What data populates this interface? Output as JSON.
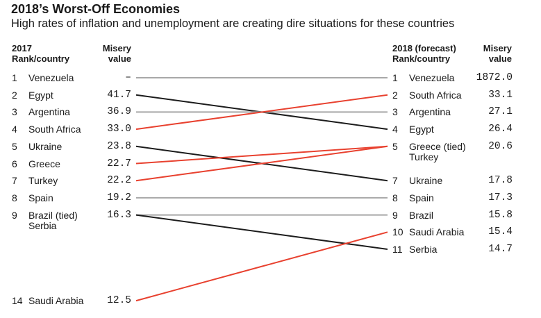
{
  "title": "2018’s Worst-Off Economies",
  "subtitle": "High rates of inflation and unemployment are creating dire situations for these countries",
  "left_header": {
    "rank_country_line1": "2017",
    "rank_country_line2": "Rank/country",
    "value_line1": "Misery",
    "value_line2": "value"
  },
  "right_header": {
    "rank_country_line1": "2018 (forecast)",
    "rank_country_line2": "Rank/country",
    "value_line1": "Misery",
    "value_line2": "value"
  },
  "colors": {
    "up": "#e8412f",
    "down": "#1c1c1c",
    "same": "#a8a8a8"
  },
  "chart_data": {
    "type": "slope",
    "left": [
      {
        "rank": "1",
        "country": "Venezuela",
        "country2": "",
        "value": "–"
      },
      {
        "rank": "2",
        "country": "Egypt",
        "country2": "",
        "value": "41.7"
      },
      {
        "rank": "3",
        "country": "Argentina",
        "country2": "",
        "value": "36.9"
      },
      {
        "rank": "4",
        "country": "South Africa",
        "country2": "",
        "value": "33.0"
      },
      {
        "rank": "5",
        "country": "Ukraine",
        "country2": "",
        "value": "23.8"
      },
      {
        "rank": "6",
        "country": "Greece",
        "country2": "",
        "value": "22.7"
      },
      {
        "rank": "7",
        "country": "Turkey",
        "country2": "",
        "value": "22.2"
      },
      {
        "rank": "8",
        "country": "Spain",
        "country2": "",
        "value": "19.2"
      },
      {
        "rank": "9",
        "country": "Brazil (tied)",
        "country2": "Serbia",
        "value": "16.3"
      },
      {
        "rank": "14",
        "country": "Saudi Arabia",
        "country2": "",
        "value": "12.5"
      }
    ],
    "right": [
      {
        "rank": "1",
        "country": "Venezuela",
        "country2": "",
        "value": "1872.0"
      },
      {
        "rank": "2",
        "country": "South Africa",
        "country2": "",
        "value": "33.1"
      },
      {
        "rank": "3",
        "country": "Argentina",
        "country2": "",
        "value": "27.1"
      },
      {
        "rank": "4",
        "country": "Egypt",
        "country2": "",
        "value": "26.4"
      },
      {
        "rank": "5",
        "country": "Greece (tied)",
        "country2": "Turkey",
        "value": "20.6"
      },
      {
        "rank": "7",
        "country": "Ukraine",
        "country2": "",
        "value": "17.8"
      },
      {
        "rank": "8",
        "country": "Spain",
        "country2": "",
        "value": "17.3"
      },
      {
        "rank": "9",
        "country": "Brazil",
        "country2": "",
        "value": "15.8"
      },
      {
        "rank": "10",
        "country": "Saudi Arabia",
        "country2": "",
        "value": "15.4"
      },
      {
        "rank": "11",
        "country": "Serbia",
        "country2": "",
        "value": "14.7"
      }
    ],
    "connections": [
      {
        "country": "Venezuela",
        "from_rank": 1,
        "to_rank": 1,
        "trend": "same"
      },
      {
        "country": "Egypt",
        "from_rank": 2,
        "to_rank": 4,
        "trend": "down"
      },
      {
        "country": "Argentina",
        "from_rank": 3,
        "to_rank": 3,
        "trend": "same"
      },
      {
        "country": "South Africa",
        "from_rank": 4,
        "to_rank": 2,
        "trend": "up"
      },
      {
        "country": "Ukraine",
        "from_rank": 5,
        "to_rank": 7,
        "trend": "down"
      },
      {
        "country": "Greece",
        "from_rank": 6,
        "to_rank": 5,
        "trend": "up"
      },
      {
        "country": "Turkey",
        "from_rank": 7,
        "to_rank": 5,
        "trend": "up"
      },
      {
        "country": "Spain",
        "from_rank": 8,
        "to_rank": 8,
        "trend": "same"
      },
      {
        "country": "Brazil",
        "from_rank": 9,
        "to_rank": 9,
        "trend": "same"
      },
      {
        "country": "Serbia",
        "from_rank": 9,
        "to_rank": 11,
        "trend": "down"
      },
      {
        "country": "Saudi Arabia",
        "from_rank": 14,
        "to_rank": 10,
        "trend": "up"
      }
    ]
  }
}
